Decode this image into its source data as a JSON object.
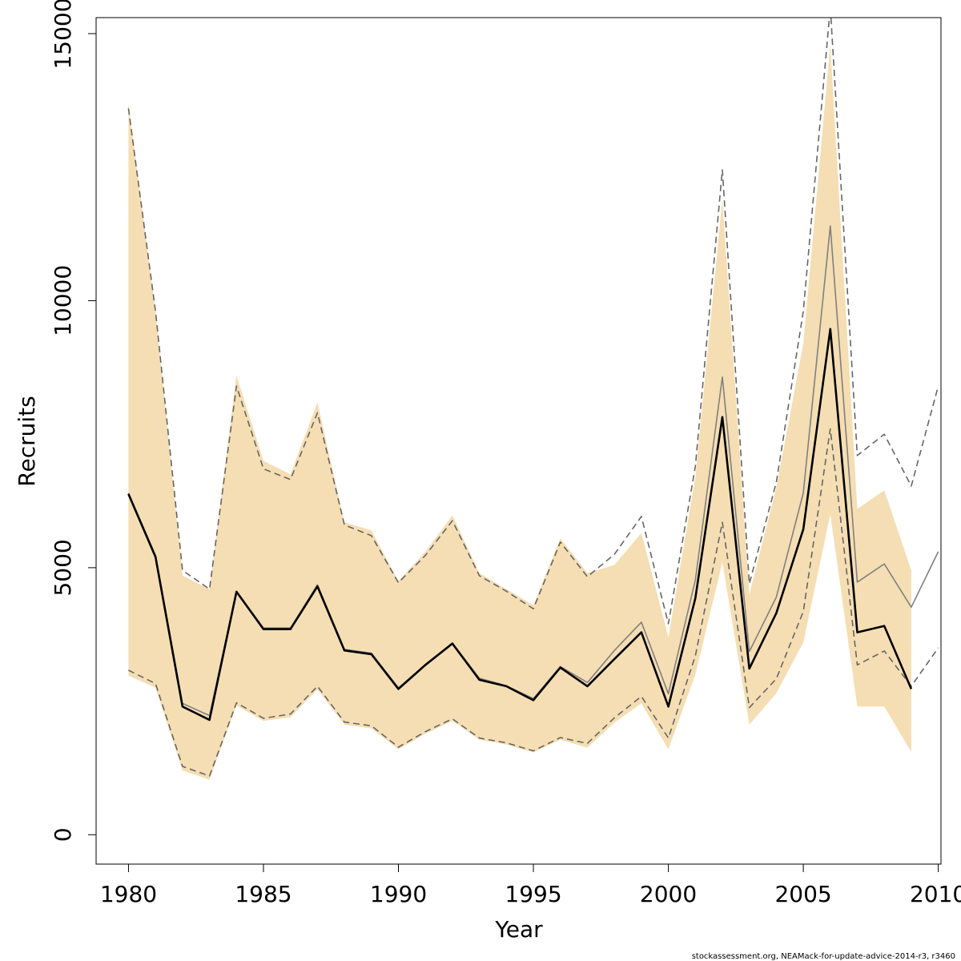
{
  "chart_data": {
    "type": "line",
    "xlabel": "Year",
    "ylabel": "Recruits",
    "xlim": [
      1978.8,
      2010.1
    ],
    "ylim": [
      -550,
      15300
    ],
    "x_ticks": [
      {
        "value": 1980,
        "label": "1980"
      },
      {
        "value": 1985,
        "label": "1985"
      },
      {
        "value": 1990,
        "label": "1990"
      },
      {
        "value": 1995,
        "label": "1995"
      },
      {
        "value": 2000,
        "label": "2000"
      },
      {
        "value": 2005,
        "label": "2005"
      },
      {
        "value": 2010,
        "label": "2010"
      }
    ],
    "y_ticks": [
      {
        "value": 0,
        "label": "0"
      },
      {
        "value": 5000,
        "label": "5000"
      },
      {
        "value": 10000,
        "label": "10000"
      },
      {
        "value": 15000,
        "label": "15000"
      }
    ],
    "colors": {
      "band": "#f5deb3",
      "main_line": "#000000",
      "other_line": "#808080",
      "dashed": "#666666"
    },
    "confidence_band": {
      "x": [
        1980,
        1981,
        1982,
        1983,
        1984,
        1985,
        1986,
        1987,
        1988,
        1989,
        1990,
        1991,
        1992,
        1993,
        1994,
        1995,
        1996,
        1997,
        1998,
        1999,
        2000,
        2001,
        2002,
        2003,
        2004,
        2005,
        2006,
        2007,
        2008,
        2009
      ],
      "lower": [
        2980,
        2750,
        1200,
        1030,
        2420,
        2130,
        2200,
        2720,
        2060,
        1990,
        1600,
        1890,
        2130,
        1780,
        1690,
        1540,
        1780,
        1630,
        2100,
        2460,
        1600,
        3000,
        5100,
        2060,
        2650,
        3600,
        6000,
        2400,
        2400,
        1550
      ],
      "upper": [
        13700,
        9800,
        4850,
        4600,
        8600,
        7000,
        6750,
        8100,
        5850,
        5700,
        4750,
        5300,
        5980,
        4900,
        4600,
        4300,
        5550,
        4900,
        5050,
        5650,
        3700,
        6700,
        11900,
        4500,
        6500,
        9200,
        14800,
        6100,
        6450,
        4950
      ]
    },
    "series": [
      {
        "style": "thick-black",
        "x": [
          1980,
          1981,
          1982,
          1983,
          1984,
          1985,
          1986,
          1987,
          1988,
          1989,
          1990,
          1991,
          1992,
          1993,
          1994,
          1995,
          1996,
          1997,
          1998,
          1999,
          2000,
          2001,
          2002,
          2003,
          2004,
          2005,
          2006,
          2007,
          2008,
          2009
        ],
        "y": [
          6380,
          5200,
          2400,
          2150,
          4550,
          3850,
          3850,
          4650,
          3450,
          3380,
          2730,
          3180,
          3580,
          2900,
          2780,
          2520,
          3130,
          2780,
          3290,
          3790,
          2400,
          4430,
          7820,
          3110,
          4150,
          5720,
          9470,
          3790,
          3910,
          2730
        ]
      },
      {
        "style": "thin-gray",
        "x": [
          1980,
          1981,
          1982,
          1983,
          1984,
          1985,
          1986,
          1987,
          1988,
          1989,
          1990,
          1991,
          1992,
          1993,
          1994,
          1995,
          1996,
          1997,
          1998,
          1999,
          2000,
          2001,
          2002,
          2003,
          2004,
          2005,
          2006,
          2007,
          2008,
          2009,
          2010
        ],
        "y": [
          6400,
          5230,
          2460,
          2230,
          4560,
          3870,
          3870,
          4680,
          3470,
          3400,
          2750,
          3190,
          3590,
          2930,
          2790,
          2550,
          3150,
          2850,
          3450,
          3980,
          2640,
          4770,
          8570,
          3430,
          4450,
          6400,
          11400,
          4730,
          5070,
          4260,
          5300
        ]
      },
      {
        "style": "dashed-upper",
        "x": [
          1980,
          1981,
          1982,
          1983,
          1984,
          1985,
          1986,
          1987,
          1988,
          1989,
          1990,
          1991,
          1992,
          1993,
          1994,
          1995,
          1996,
          1997,
          1998,
          1999,
          2000,
          2001,
          2002,
          2003,
          2004,
          2005,
          2006,
          2007,
          2008,
          2009,
          2010
        ],
        "y": [
          13600,
          9800,
          4950,
          4600,
          8400,
          6850,
          6650,
          7900,
          5800,
          5600,
          4720,
          5230,
          5880,
          4850,
          4560,
          4230,
          5480,
          4830,
          5250,
          5960,
          3950,
          6900,
          12450,
          4700,
          6600,
          9800,
          15500,
          7100,
          7500,
          6530,
          8400
        ]
      },
      {
        "style": "dashed-lower",
        "x": [
          1980,
          1981,
          1982,
          1983,
          1984,
          1985,
          1986,
          1987,
          1988,
          1989,
          1990,
          1991,
          1992,
          1993,
          1994,
          1995,
          1996,
          1997,
          1998,
          1999,
          2000,
          2001,
          2002,
          2003,
          2004,
          2005,
          2006,
          2007,
          2008,
          2009,
          2010
        ],
        "y": [
          3080,
          2830,
          1280,
          1100,
          2470,
          2180,
          2260,
          2780,
          2110,
          2040,
          1640,
          1930,
          2170,
          1810,
          1720,
          1570,
          1820,
          1710,
          2190,
          2590,
          1810,
          3350,
          5850,
          2380,
          2920,
          4180,
          7600,
          3180,
          3440,
          2780,
          3500
        ]
      }
    ],
    "footer": "stockassessment.org, NEAMack-for-update-advice-2014-r3, r3460"
  }
}
